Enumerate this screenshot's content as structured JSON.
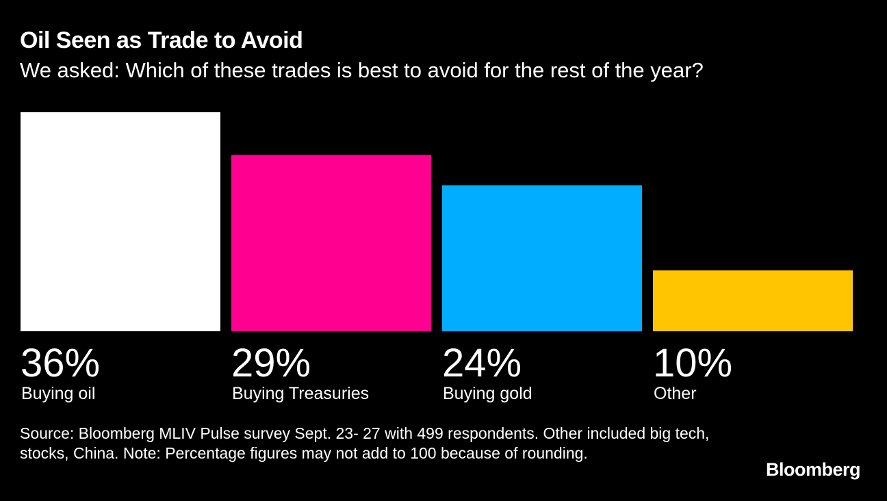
{
  "chart_data": {
    "type": "bar",
    "title": "Oil Seen as Trade to Avoid",
    "subtitle": "We asked: Which of these trades is best to avoid for the rest of the year?",
    "categories": [
      "Buying oil",
      "Buying Treasuries",
      "Buying gold",
      "Other"
    ],
    "values": [
      36,
      29,
      24,
      10
    ],
    "value_labels": [
      "36%",
      "29%",
      "24%",
      "10%"
    ],
    "colors": [
      "#ffffff",
      "#ff0090",
      "#00adff",
      "#ffc600"
    ],
    "unit": "%",
    "ylim": [
      0,
      36
    ],
    "grid": false,
    "legend": "none"
  },
  "footer": {
    "source": "Source: Bloomberg MLIV Pulse survey Sept. 23- 27 with 499 respondents. Other included big tech, stocks, China. Note: Percentage figures may not add to 100 because of rounding.",
    "logo": "Bloomberg"
  }
}
